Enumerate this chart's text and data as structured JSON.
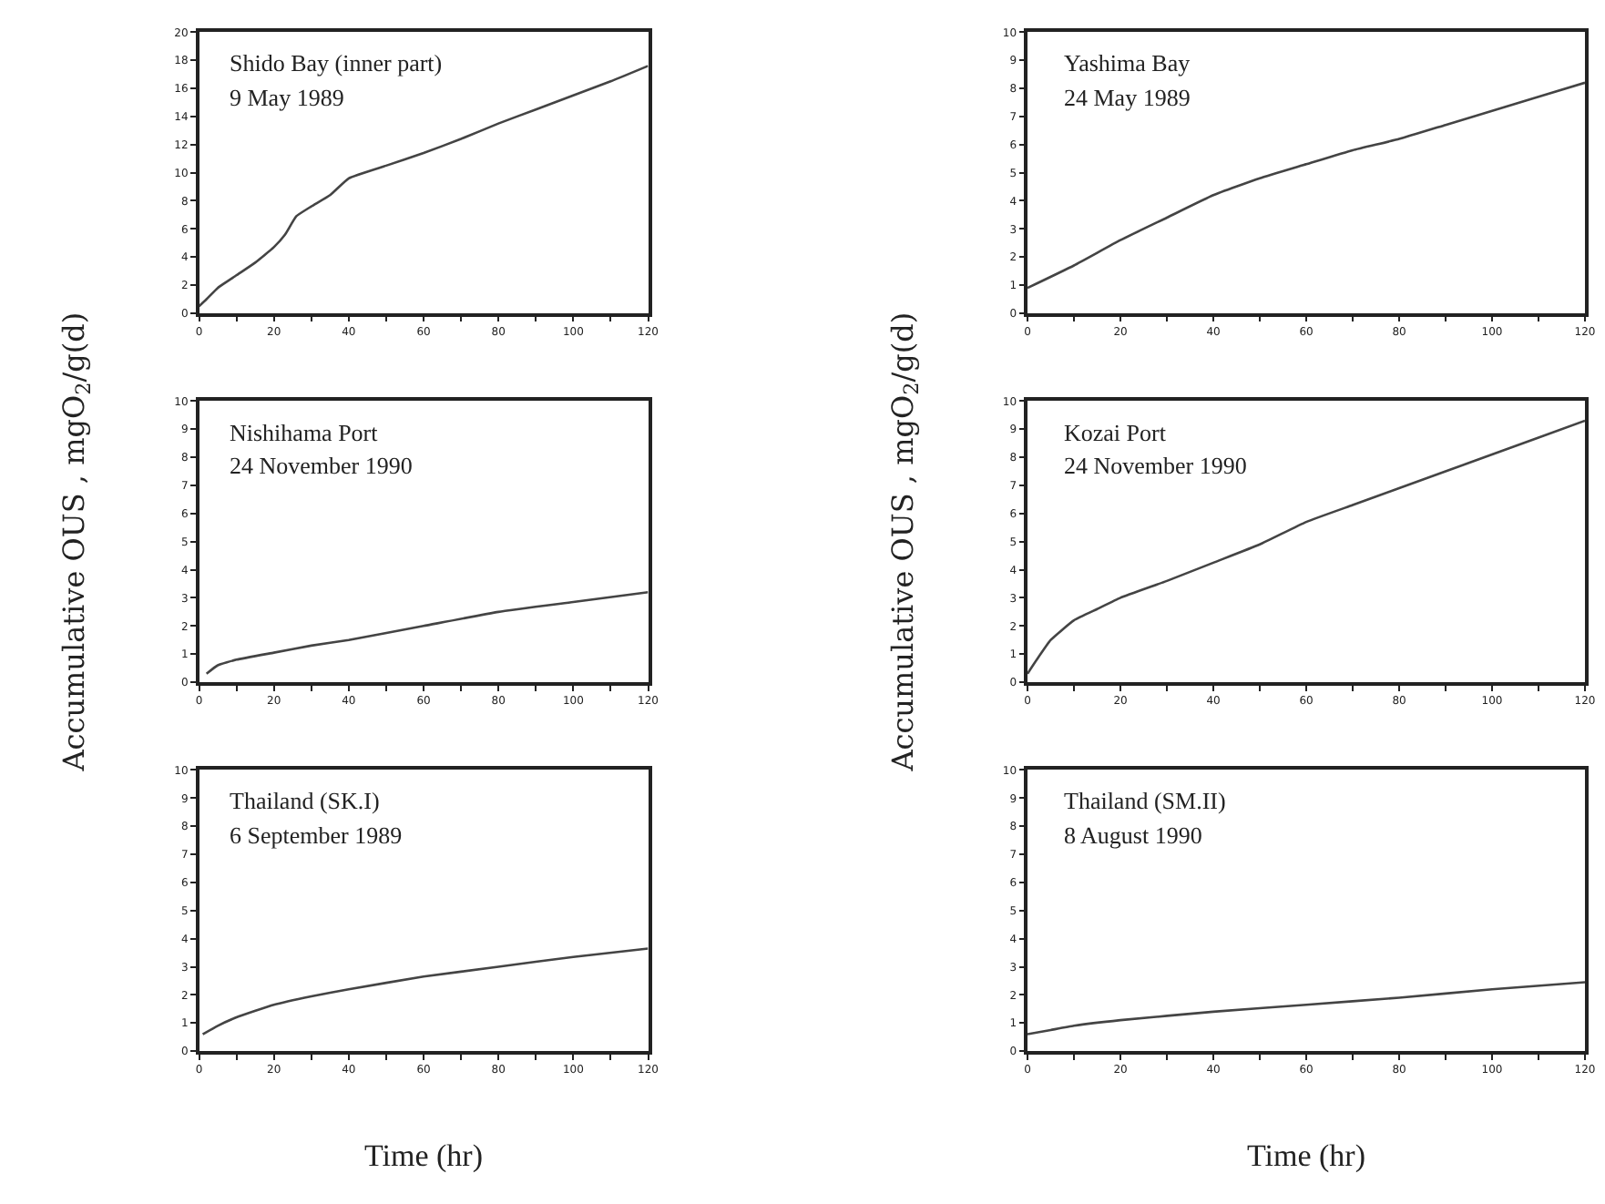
{
  "chart_data": [
    {
      "type": "line",
      "title": "Shido Bay (inner part)",
      "subtitle": "9 May 1989",
      "x": [
        0,
        2,
        5,
        10,
        15,
        20,
        23,
        26,
        30,
        35,
        40,
        50,
        60,
        70,
        80,
        90,
        100,
        110,
        120
      ],
      "series": [
        {
          "color": "#444444",
          "values": [
            0.5,
            1.0,
            1.8,
            2.7,
            3.6,
            4.7,
            5.6,
            6.9,
            7.6,
            8.4,
            9.6,
            10.5,
            11.4,
            12.4,
            13.5,
            14.5,
            15.5,
            16.5,
            17.6
          ]
        }
      ],
      "xlim": [
        0,
        120
      ],
      "ylim": [
        0,
        20
      ],
      "xticks": [
        0,
        {
          "value": 10,
          "label": null
        },
        20,
        {
          "value": 30,
          "label": null
        },
        40,
        {
          "value": 50,
          "label": null
        },
        60,
        {
          "value": 70,
          "label": null
        },
        80,
        {
          "value": 90,
          "label": null
        },
        100,
        {
          "value": 110,
          "label": null
        },
        120
      ],
      "yticks": [
        0,
        2,
        4,
        6,
        8,
        10,
        12,
        14,
        16,
        18,
        20
      ]
    },
    {
      "type": "line",
      "title": "Yashima Bay",
      "subtitle": "24 May 1989",
      "x": [
        0,
        10,
        20,
        30,
        40,
        50,
        60,
        70,
        80,
        90,
        100,
        110,
        120
      ],
      "series": [
        {
          "color": "#444444",
          "values": [
            0.9,
            1.7,
            2.6,
            3.4,
            4.2,
            4.8,
            5.3,
            5.8,
            6.2,
            6.7,
            7.2,
            7.7,
            8.2
          ]
        }
      ],
      "xlim": [
        0,
        120
      ],
      "ylim": [
        0,
        10
      ],
      "xticks": [
        0,
        {
          "value": 10,
          "label": null
        },
        20,
        {
          "value": 30,
          "label": null
        },
        40,
        {
          "value": 50,
          "label": null
        },
        60,
        {
          "value": 70,
          "label": null
        },
        80,
        {
          "value": 90,
          "label": null
        },
        100,
        {
          "value": 110,
          "label": null
        },
        120
      ],
      "yticks": [
        0,
        1,
        2,
        3,
        4,
        5,
        6,
        7,
        8,
        9,
        10
      ]
    },
    {
      "type": "line",
      "title": "Nishihama Port",
      "subtitle": "24 November 1990",
      "ylabel": "Accumulative OUS , mgO$_{2}$/g(d)",
      "x": [
        2,
        5,
        10,
        20,
        30,
        40,
        60,
        80,
        100,
        120
      ],
      "series": [
        {
          "color": "#444444",
          "values": [
            0.3,
            0.6,
            0.8,
            1.05,
            1.3,
            1.5,
            2.0,
            2.5,
            2.85,
            3.2
          ]
        }
      ],
      "xlim": [
        0,
        120
      ],
      "ylim": [
        0,
        10
      ],
      "xticks": [
        0,
        {
          "value": 10,
          "label": null
        },
        20,
        {
          "value": 30,
          "label": null
        },
        40,
        {
          "value": 50,
          "label": null
        },
        60,
        {
          "value": 70,
          "label": null
        },
        80,
        {
          "value": 90,
          "label": null
        },
        100,
        {
          "value": 110,
          "label": null
        },
        120
      ],
      "yticks": [
        0,
        1,
        2,
        3,
        4,
        5,
        6,
        7,
        8,
        9,
        10
      ]
    },
    {
      "type": "line",
      "title": "Kozai Port",
      "subtitle": "24 November 1990",
      "ylabel": "Accumulative OUS , mgO$_{2}$/g(d)",
      "x": [
        0,
        2,
        5,
        10,
        15,
        20,
        30,
        40,
        50,
        60,
        70,
        80,
        90,
        100,
        110,
        120
      ],
      "series": [
        {
          "color": "#444444",
          "values": [
            0.3,
            0.8,
            1.5,
            2.2,
            2.6,
            3.0,
            3.6,
            4.25,
            4.9,
            5.7,
            6.3,
            6.9,
            7.5,
            8.1,
            8.7,
            9.3
          ]
        }
      ],
      "xlim": [
        0,
        120
      ],
      "ylim": [
        0,
        10
      ],
      "xticks": [
        0,
        {
          "value": 10,
          "label": null
        },
        20,
        {
          "value": 30,
          "label": null
        },
        40,
        {
          "value": 50,
          "label": null
        },
        60,
        {
          "value": 70,
          "label": null
        },
        80,
        {
          "value": 90,
          "label": null
        },
        100,
        {
          "value": 110,
          "label": null
        },
        120
      ],
      "yticks": [
        0,
        1,
        2,
        3,
        4,
        5,
        6,
        7,
        8,
        9,
        10
      ]
    },
    {
      "type": "line",
      "title": "Thailand (SK.I)",
      "subtitle": "6 September 1989",
      "xlabel": "Time (hr)",
      "x": [
        1,
        5,
        10,
        20,
        30,
        40,
        60,
        80,
        100,
        120
      ],
      "series": [
        {
          "color": "#444444",
          "values": [
            0.6,
            0.9,
            1.2,
            1.65,
            1.95,
            2.2,
            2.65,
            3.0,
            3.35,
            3.65
          ]
        }
      ],
      "xlim": [
        0,
        120
      ],
      "ylim": [
        0,
        10
      ],
      "xticks": [
        0,
        {
          "value": 10,
          "label": null
        },
        20,
        {
          "value": 30,
          "label": null
        },
        40,
        {
          "value": 50,
          "label": null
        },
        60,
        {
          "value": 70,
          "label": null
        },
        80,
        {
          "value": 90,
          "label": null
        },
        100,
        {
          "value": 110,
          "label": null
        },
        120
      ],
      "yticks": [
        0,
        1,
        2,
        3,
        4,
        5,
        6,
        7,
        8,
        9,
        10
      ]
    },
    {
      "type": "line",
      "title": "Thailand (SM.II)",
      "subtitle": "8 August 1990",
      "xlabel": "Time (hr)",
      "x": [
        0,
        5,
        10,
        20,
        40,
        60,
        80,
        100,
        120
      ],
      "series": [
        {
          "color": "#444444",
          "values": [
            0.6,
            0.75,
            0.9,
            1.1,
            1.4,
            1.65,
            1.9,
            2.2,
            2.45
          ]
        }
      ],
      "xlim": [
        0,
        120
      ],
      "ylim": [
        0,
        10
      ],
      "xticks": [
        0,
        {
          "value": 10,
          "label": null
        },
        20,
        {
          "value": 30,
          "label": null
        },
        40,
        {
          "value": 50,
          "label": null
        },
        60,
        {
          "value": 70,
          "label": null
        },
        80,
        {
          "value": 90,
          "label": null
        },
        100,
        {
          "value": 110,
          "label": null
        },
        120
      ],
      "yticks": [
        0,
        1,
        2,
        3,
        4,
        5,
        6,
        7,
        8,
        9,
        10
      ]
    }
  ]
}
